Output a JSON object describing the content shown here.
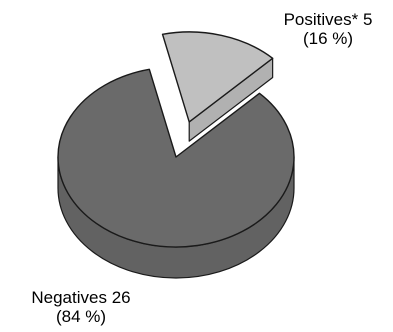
{
  "chart_data": {
    "type": "pie",
    "style": "3d-exploded",
    "categories": [
      "Negatives",
      "Positives*"
    ],
    "values": [
      26,
      5
    ],
    "percentages": [
      "84 %",
      "16 %"
    ],
    "colors": {
      "Negatives": "#6a6a6a",
      "Positives*": "#c0c0c0",
      "outline": "#1a1a1a"
    },
    "exploded": [
      "Positives*"
    ],
    "labels": {
      "positives_line1": "Positives* 5",
      "positives_line2": "(16 %)",
      "negatives_line1": "Negatives 26",
      "negatives_line2": "(84 %)"
    }
  }
}
